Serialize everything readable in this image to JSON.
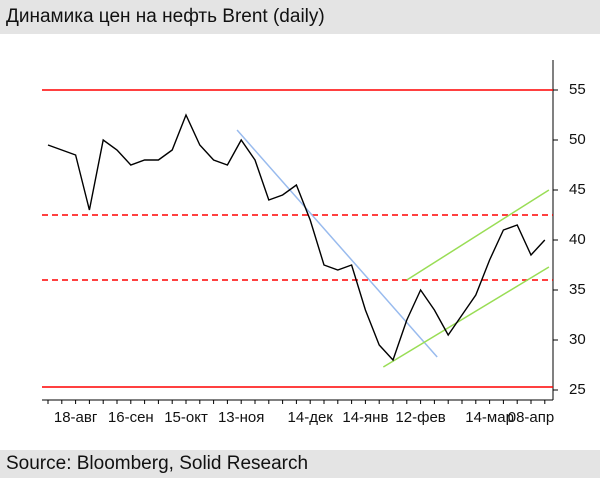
{
  "chart_data": {
    "type": "line",
    "title": "Динамика цен на нефть Brent (daily)",
    "source": "Source: Bloomberg, Solid Research",
    "categories": [
      null,
      null,
      "18-авг",
      null,
      null,
      null,
      "16-сен",
      null,
      null,
      null,
      "15-окт",
      null,
      null,
      null,
      "13-ноя",
      null,
      null,
      null,
      null,
      "14-дек",
      null,
      null,
      null,
      "14-янв",
      null,
      null,
      null,
      "12-фев",
      null,
      null,
      null,
      null,
      "14-мар",
      null,
      null,
      "08-апр",
      null
    ],
    "series": [
      {
        "color": "#000000",
        "values": [
          49.5,
          49,
          48.5,
          43,
          50,
          49,
          47.5,
          48,
          48,
          49,
          52.5,
          49.5,
          48,
          47.5,
          50,
          48,
          44,
          44.5,
          45.5,
          42,
          37.5,
          37,
          37.5,
          33,
          29.5,
          28,
          32,
          35,
          33,
          30.5,
          32.5,
          34.5,
          38,
          41,
          41.5,
          38.5,
          40
        ]
      }
    ],
    "ylim": [
      24,
      58
    ],
    "yticks": [
      25,
      30,
      35,
      40,
      45,
      50,
      55
    ],
    "y_axis_side": "right",
    "levels": [
      {
        "value": 55,
        "color": "#ff0000",
        "dashed": false
      },
      {
        "value": 42.5,
        "color": "#ff0000",
        "dashed": true
      },
      {
        "value": 36,
        "color": "#ff0000",
        "dashed": true
      },
      {
        "value": 25.3,
        "color": "#ff0000",
        "dashed": false
      }
    ],
    "trendlines": [
      {
        "color": "#99bbee",
        "from": [
          13.7,
          51
        ],
        "to": [
          28.2,
          28.3
        ]
      },
      {
        "color": "#99dd55",
        "from": [
          24.3,
          27.3
        ],
        "to": [
          36.3,
          37.3
        ]
      },
      {
        "color": "#99dd55",
        "from": [
          26,
          36
        ],
        "to": [
          36.3,
          45
        ]
      }
    ]
  }
}
